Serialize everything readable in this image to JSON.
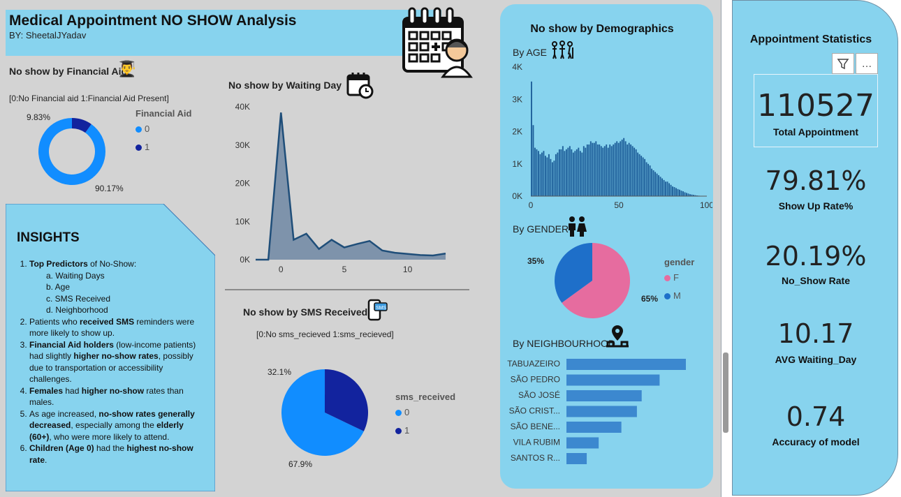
{
  "header": {
    "title": "Medical Appointment NO SHOW Analysis",
    "byline": "BY: SheetalJYadav"
  },
  "colors": {
    "canvas": "#d3d3d3",
    "panel": "#87d3ee",
    "primary": "#118dff",
    "dark": "#12239e",
    "area_fill": "#7e93ab",
    "area_line": "#1f4e79",
    "hist_bar": "#1e5f9a",
    "gender_f": "#e66c9f",
    "gender_m": "#1e6fc9",
    "neigh_bar": "#3c88cf"
  },
  "financial_aid": {
    "title": "No show by Financial Aid",
    "note": "[0:No Financial aid 1:Financial Aid Present]",
    "legend_title": "Financial Aid",
    "legend": [
      "0",
      "1"
    ],
    "label_small": "9.83%",
    "label_large": "90.17%"
  },
  "waiting": {
    "title": "No show by Waiting Day"
  },
  "sms": {
    "title": "No show by SMS Received",
    "note": "[0:No sms_recieved 1:sms_recieved]",
    "legend_title": "sms_received",
    "legend": [
      "0",
      "1"
    ],
    "label_small": "32.1%",
    "label_large": "67.9%"
  },
  "insights": {
    "title": "INSIGHTS",
    "i1_bold": "Top Predictors",
    "i1_rest": " of No-Show:",
    "sub": [
      "a. Waiting Days",
      "b. Age",
      "c. SMS Received",
      "d. Neighborhood"
    ],
    "i2_a": "Patients who ",
    "i2_b": "received SMS",
    "i2_c": " reminders were more likely to show up.",
    "i3_a": "Financial Aid holders",
    "i3_b": " (low-income patients) had slightly ",
    "i3_c": "higher no-show rates",
    "i3_d": ", possibly due to transportation or accessibility challenges.",
    "i4_a": "Females",
    "i4_b": " had  ",
    "i4_c": "higher no-show",
    "i4_d": " rates than males.",
    "i5_a": "As age increased, ",
    "i5_b": "no-show rates generally decreased",
    "i5_c": ", especially among the ",
    "i5_d": "elderly (60+)",
    "i5_e": ", who were more likely to attend.",
    "i6_a": "Children (Age 0)",
    "i6_b": " had the ",
    "i6_c": "highest no-show rate",
    "i6_d": "."
  },
  "demographics": {
    "title": "No show by Demographics",
    "age_title": "By AGE",
    "gender_title": "By GENDER",
    "gender_legend_title": "gender",
    "gender_legend": [
      "F",
      "M"
    ],
    "gender_label_m": "35%",
    "gender_label_f": "65%",
    "neigh_title": "By NEIGHBOURHOOD"
  },
  "stats": {
    "title": "Appointment Statistics",
    "filter_icon": "filter-icon",
    "more_icon": "more-options-icon",
    "total_value": "110527",
    "total_label": "Total Appointment",
    "show_value": "79.81%",
    "show_label": "Show Up Rate%",
    "noshow_value": "20.19%",
    "noshow_label": "No_Show Rate",
    "wait_value": "10.17",
    "wait_label": "AVG Waiting_Day",
    "acc_value": "0.74",
    "acc_label": "Accuracy of model"
  },
  "chart_data": [
    {
      "id": "financial_aid",
      "type": "pie",
      "style": "donut",
      "title": "No show by Financial Aid",
      "legend_title": "Financial Aid",
      "categories": [
        "0",
        "1"
      ],
      "values": [
        90.17,
        9.83
      ],
      "colors": [
        "#118dff",
        "#12239e"
      ]
    },
    {
      "id": "waiting_day",
      "type": "area",
      "title": "No show by Waiting Day",
      "x": [
        -2,
        -1,
        0,
        1,
        2,
        3,
        4,
        5,
        6,
        7,
        8,
        9,
        10,
        11,
        12,
        13
      ],
      "values": [
        0,
        0,
        38500,
        5200,
        6800,
        2800,
        5200,
        3200,
        4100,
        4900,
        2400,
        1800,
        1500,
        1200,
        1100,
        1600
      ],
      "xticks": [
        0,
        5,
        10
      ],
      "yticks": [
        "0K",
        "10K",
        "20K",
        "30K",
        "40K"
      ],
      "ylim": [
        0,
        40000
      ]
    },
    {
      "id": "sms_received",
      "type": "pie",
      "title": "No show by SMS Received",
      "legend_title": "sms_received",
      "categories": [
        "0",
        "1"
      ],
      "values": [
        67.9,
        32.1
      ],
      "colors": [
        "#118dff",
        "#12239e"
      ]
    },
    {
      "id": "age",
      "type": "bar",
      "title": "By AGE",
      "x_start": 0,
      "values": [
        3550,
        2200,
        1500,
        1450,
        1400,
        1300,
        1350,
        1400,
        1250,
        1200,
        1300,
        1150,
        1050,
        1100,
        1300,
        1350,
        1450,
        1450,
        1550,
        1400,
        1450,
        1500,
        1550,
        1450,
        1350,
        1400,
        1450,
        1500,
        1400,
        1350,
        1550,
        1500,
        1600,
        1600,
        1700,
        1650,
        1650,
        1700,
        1600,
        1600,
        1550,
        1500,
        1550,
        1600,
        1500,
        1600,
        1550,
        1600,
        1650,
        1700,
        1650,
        1700,
        1750,
        1800,
        1700,
        1600,
        1650,
        1600,
        1550,
        1500,
        1450,
        1350,
        1300,
        1250,
        1200,
        1150,
        1050,
        1000,
        950,
        850,
        800,
        750,
        700,
        650,
        600,
        550,
        500,
        450,
        450,
        400,
        350,
        300,
        280,
        250,
        220,
        200,
        170,
        150,
        120,
        100,
        80,
        60,
        50,
        40,
        30,
        20,
        15,
        10,
        8,
        5,
        3
      ],
      "xticks": [
        0,
        50,
        100
      ],
      "yticks": [
        "0K",
        "1K",
        "2K",
        "3K",
        "4K"
      ],
      "ylim": [
        0,
        4000
      ]
    },
    {
      "id": "gender",
      "type": "pie",
      "title": "By GENDER",
      "legend_title": "gender",
      "categories": [
        "F",
        "M"
      ],
      "values": [
        65,
        35
      ],
      "colors": [
        "#e66c9f",
        "#1e6fc9"
      ]
    },
    {
      "id": "neighbourhood",
      "type": "bar",
      "orientation": "horizontal",
      "title": "By NEIGHBOURHOOD",
      "categories": [
        "TABUAZEIRO",
        "SÃO PEDRO",
        "SÃO JOSÉ",
        "SÃO CRIST...",
        "SÃO BENE...",
        "VILA RUBIM",
        "SANTOS R..."
      ],
      "values": [
        1000,
        780,
        630,
        590,
        460,
        270,
        170
      ]
    }
  ]
}
